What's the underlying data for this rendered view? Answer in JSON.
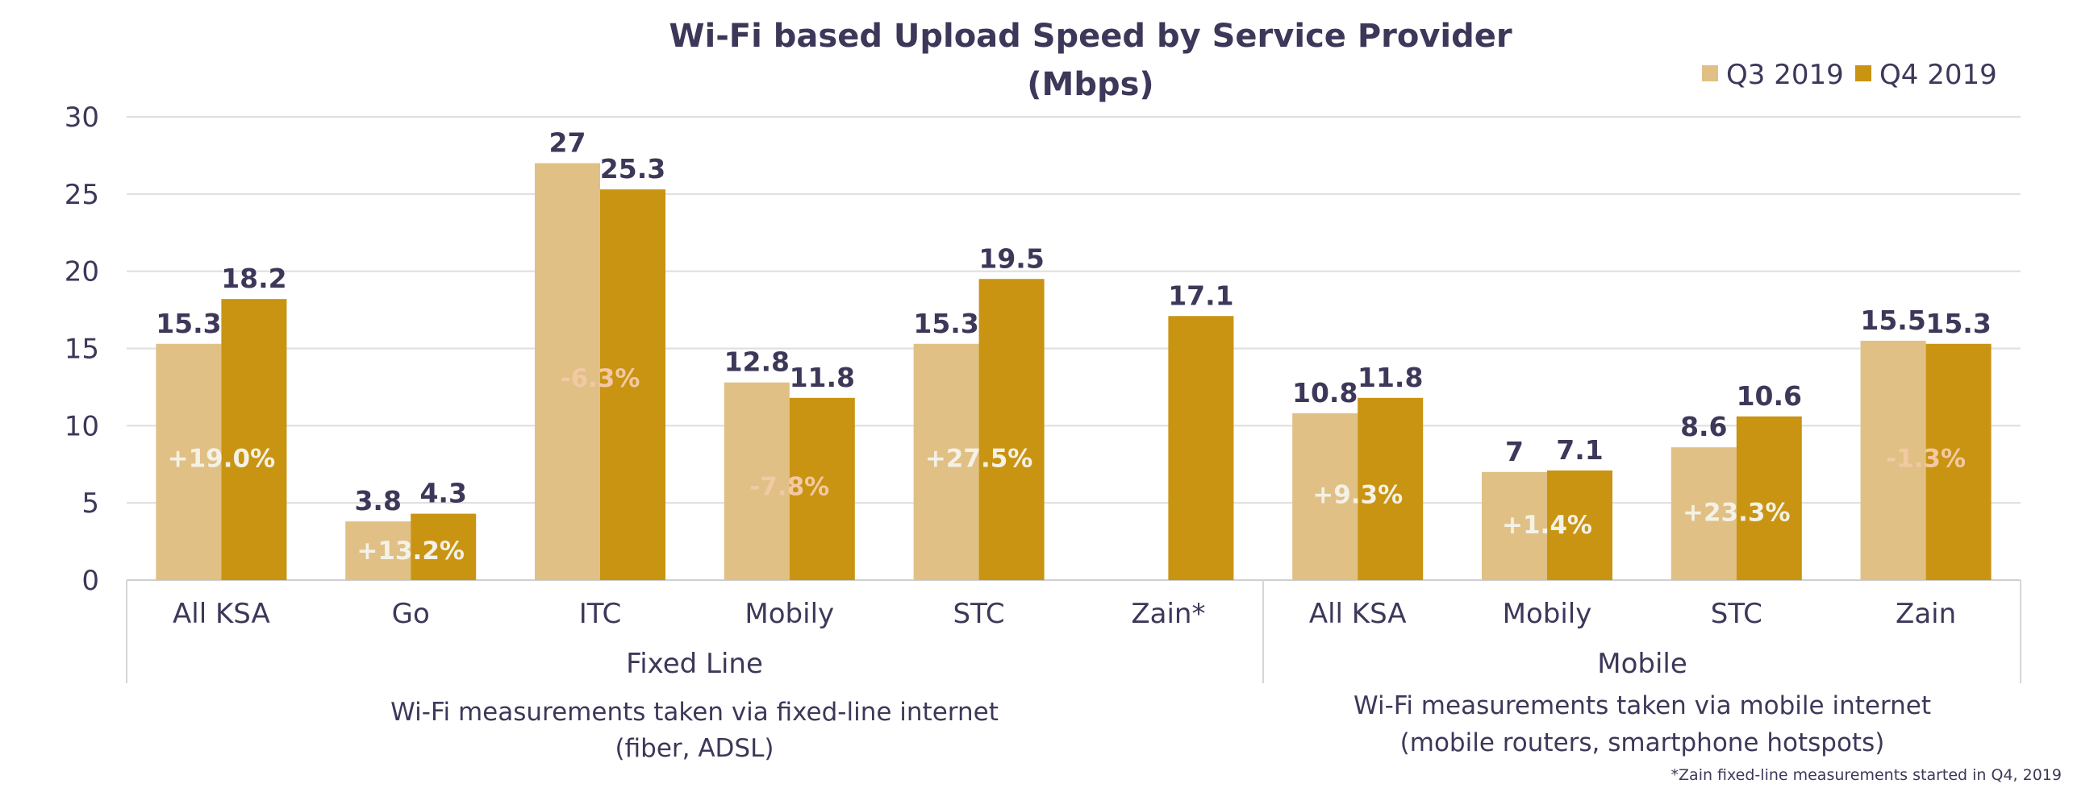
{
  "chart_data": {
    "type": "bar",
    "title": "Wi-Fi based Upload Speed by Service Provider",
    "subtitle": "(Mbps)",
    "ylim": [
      0,
      30
    ],
    "yticks": [
      0,
      5,
      10,
      15,
      20,
      25,
      30
    ],
    "grid": true,
    "legend_position": "top-right",
    "categories": [
      "All KSA",
      "Go",
      "ITC",
      "Mobily",
      "STC",
      "Zain*",
      "All KSA",
      "Mobily",
      "STC",
      "Zain"
    ],
    "series": [
      {
        "name": "Q3 2019",
        "color": "#e0c084",
        "values": [
          15.3,
          3.8,
          27,
          12.8,
          15.3,
          null,
          10.8,
          7,
          8.6,
          15.5
        ]
      },
      {
        "name": "Q4 2019",
        "color": "#c89412",
        "values": [
          18.2,
          4.3,
          25.3,
          11.8,
          19.5,
          17.1,
          11.8,
          7.1,
          10.6,
          15.3
        ]
      }
    ],
    "changes": [
      "+19.0%",
      "+13.2%",
      "-6.3%",
      "-7.8%",
      "+27.5%",
      null,
      "+9.3%",
      "+1.4%",
      "+23.3%",
      "-1.3%"
    ],
    "groups": [
      {
        "name": "Fixed Line",
        "note_line1": "Wi-Fi measurements taken via fixed-line internet",
        "note_line2": "(fiber, ADSL)"
      },
      {
        "name": "Mobile",
        "note_line1": "Wi-Fi measurements taken via mobile internet",
        "note_line2": "(mobile routers, smartphone hotspots)"
      }
    ],
    "footnote": "*Zain fixed-line measurements started in Q4, 2019",
    "colors": {
      "text": "#3d3859",
      "positive_change": "#f4f1e6",
      "negative_change": "#f2c9a3"
    }
  }
}
